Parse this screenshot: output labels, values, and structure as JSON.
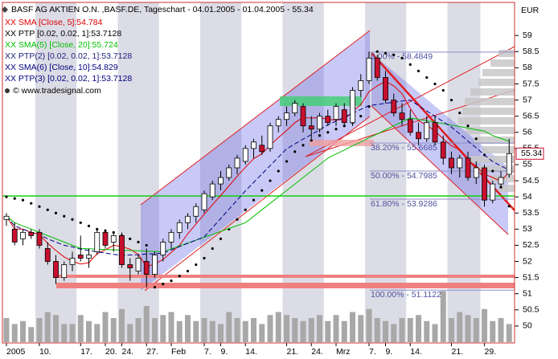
{
  "chart_data": {
    "type": "candlestick",
    "title": "BASF AG AKTIEN O.N. ,BASF.DE, Tageschart - 04.01.2005 - 01.04.2005 - 55.34",
    "y_axis_label": "EUR",
    "copyright": "© www.tradesignal.com",
    "categories": [
      "2005",
      null,
      null,
      null,
      "10.",
      null,
      null,
      null,
      null,
      "17.",
      null,
      null,
      "20.",
      null,
      "24.",
      null,
      null,
      "27.",
      null,
      null,
      "Feb",
      null,
      null,
      null,
      "7.",
      null,
      "9.",
      null,
      null,
      "14.",
      null,
      null,
      null,
      null,
      "21.",
      null,
      null,
      "24.",
      null,
      null,
      "Mrz",
      null,
      null,
      null,
      "7.",
      null,
      "9.",
      null,
      null,
      "14.",
      null,
      null,
      null,
      null,
      "21.",
      null,
      null,
      null,
      "29.",
      null,
      null,
      null
    ],
    "open": [
      53.3,
      53.0,
      52.7,
      52.9,
      52.9,
      52.4,
      52.0,
      51.5,
      51.9,
      52.2,
      52.1,
      52.3,
      52.9,
      52.6,
      52.8,
      51.9,
      51.7,
      52.0,
      51.6,
      52.2,
      52.6,
      52.9,
      53.2,
      53.4,
      53.6,
      54.0,
      54.4,
      54.6,
      54.9,
      55.1,
      55.5,
      55.6,
      55.5,
      56.2,
      56.4,
      56.6,
      56.8,
      56.2,
      56.1,
      56.5,
      56.4,
      56.7,
      56.3,
      57.3,
      57.6,
      58.3,
      57.7,
      57.0,
      56.6,
      56.4,
      56.0,
      55.8,
      56.3,
      55.7,
      55.2,
      54.9,
      55.2,
      54.6,
      54.9,
      53.9,
      54.4,
      54.7
    ],
    "high": [
      53.5,
      53.2,
      53.0,
      53.0,
      53.0,
      52.6,
      52.2,
      52.0,
      52.3,
      52.8,
      52.4,
      53.0,
      53.0,
      52.9,
      52.9,
      52.1,
      52.2,
      52.4,
      52.3,
      52.7,
      53.0,
      53.3,
      53.5,
      53.8,
      54.2,
      54.5,
      54.8,
      55.0,
      55.3,
      55.6,
      55.8,
      55.9,
      56.3,
      56.5,
      56.8,
      57.0,
      56.9,
      56.5,
      56.6,
      56.7,
      56.9,
      56.9,
      57.4,
      57.8,
      58.5,
      58.4,
      57.9,
      57.2,
      56.9,
      56.7,
      56.3,
      56.5,
      56.5,
      55.9,
      55.4,
      55.3,
      55.4,
      55.1,
      55.0,
      54.5,
      54.8,
      55.8
    ],
    "low": [
      53.1,
      52.5,
      52.5,
      52.7,
      52.4,
      51.9,
      51.3,
      51.4,
      51.7,
      52.0,
      51.8,
      52.2,
      52.4,
      52.3,
      51.8,
      51.4,
      51.6,
      51.2,
      51.5,
      52.0,
      52.4,
      52.7,
      53.0,
      53.2,
      53.5,
      53.9,
      54.2,
      54.5,
      54.7,
      55.0,
      55.2,
      55.3,
      55.4,
      56.0,
      56.2,
      56.5,
      56.0,
      55.8,
      56.0,
      56.2,
      56.2,
      56.2,
      56.2,
      57.1,
      57.5,
      57.6,
      56.9,
      56.5,
      56.2,
      55.9,
      55.6,
      55.7,
      55.6,
      55.0,
      54.7,
      54.6,
      54.5,
      54.4,
      53.7,
      53.8,
      54.3,
      54.6
    ],
    "close": [
      53.4,
      52.6,
      52.9,
      52.8,
      52.5,
      52.0,
      51.5,
      51.9,
      52.1,
      52.1,
      52.2,
      52.9,
      52.5,
      52.8,
      51.9,
      51.8,
      52.1,
      51.6,
      52.2,
      52.6,
      52.9,
      53.2,
      53.4,
      53.7,
      54.1,
      54.4,
      54.6,
      54.9,
      55.2,
      55.5,
      55.7,
      55.4,
      56.2,
      56.4,
      56.6,
      56.9,
      56.2,
      56.1,
      56.5,
      56.3,
      56.8,
      56.3,
      57.3,
      57.6,
      58.3,
      57.7,
      57.0,
      56.6,
      56.4,
      56.0,
      55.8,
      56.3,
      55.7,
      55.2,
      54.9,
      55.2,
      54.6,
      54.9,
      53.9,
      54.4,
      54.6,
      55.34
    ],
    "volume": [
      4,
      3,
      3.5,
      2.5,
      4,
      5,
      4.5,
      3,
      3,
      4.5,
      3.5,
      3,
      5,
      4,
      5.5,
      3,
      4,
      6,
      4,
      4.5,
      5,
      3.5,
      4.5,
      3.5,
      4,
      3.5,
      3,
      5,
      4,
      3.5,
      4,
      3,
      4.5,
      5,
      4.5,
      4,
      3.5,
      4,
      4.5,
      3.5,
      4.5,
      3.5,
      5,
      4.5,
      5.5,
      4,
      3.5,
      3,
      4,
      4,
      4.5,
      3.5,
      3,
      8.5,
      4,
      5,
      4.5,
      4,
      5.5,
      3.5,
      4,
      3
    ],
    "series": [
      {
        "name": "XX SMA [Close, 5]:54.784",
        "color": "#e00000",
        "style": "line",
        "values": [
          53.4,
          53.0,
          53.0,
          52.9,
          52.84,
          52.56,
          52.34,
          52.14,
          52.0,
          51.92,
          51.96,
          52.24,
          52.36,
          52.5,
          52.46,
          52.38,
          52.22,
          51.84,
          51.92,
          52.06,
          52.28,
          52.5,
          52.86,
          53.16,
          53.46,
          53.76,
          54.04,
          54.34,
          54.64,
          54.92,
          55.18,
          55.34,
          55.6,
          55.84,
          56.06,
          56.3,
          56.46,
          56.44,
          56.46,
          56.4,
          56.38,
          56.4,
          56.64,
          56.86,
          57.26,
          57.44,
          57.58,
          57.44,
          57.2,
          56.74,
          56.36,
          56.22,
          56.04,
          55.8,
          55.58,
          55.46,
          55.12,
          54.96,
          54.7,
          54.6,
          54.48,
          54.78
        ]
      },
      {
        "name": "XX PTP [0.02, 0.02, 1]:53.7128",
        "color": "#000000",
        "style": "dots",
        "values": [
          54.0,
          53.95,
          53.9,
          53.8,
          53.7,
          53.6,
          53.5,
          53.4,
          53.3,
          53.2,
          53.1,
          53.0,
          52.95,
          52.9,
          52.8,
          52.7,
          52.6,
          52.5,
          51.2,
          51.3,
          51.4,
          51.55,
          51.7,
          51.9,
          52.1,
          52.4,
          52.7,
          53.0,
          53.3,
          53.6,
          53.9,
          54.2,
          54.5,
          54.8,
          55.1,
          55.4,
          55.6,
          55.75,
          55.9,
          56.0,
          56.1,
          56.2,
          56.3,
          56.5,
          56.8,
          58.5,
          58.45,
          58.4,
          58.3,
          58.1,
          57.9,
          57.7,
          57.5,
          57.3,
          57.0,
          56.6,
          56.2,
          55.8,
          55.3,
          54.8,
          54.3,
          53.71
        ]
      },
      {
        "name": "XX SMA(5) [Close, 20]:55.724",
        "color": "#00c000",
        "style": "line",
        "values": [
          53.4,
          53.2,
          53.1,
          53.0,
          52.9,
          52.8,
          52.7,
          52.6,
          52.5,
          52.4,
          52.39,
          52.38,
          52.37,
          52.36,
          52.35,
          52.34,
          52.33,
          52.32,
          52.31,
          52.3,
          52.39,
          52.48,
          52.57,
          52.66,
          52.75,
          52.84,
          52.93,
          53.02,
          53.11,
          53.2,
          53.4,
          53.6,
          53.8,
          54.0,
          54.2,
          54.4,
          54.6,
          54.8,
          55.0,
          55.2,
          55.33,
          55.45,
          55.58,
          55.7,
          55.83,
          55.95,
          56.08,
          56.2,
          56.33,
          56.45,
          56.4,
          56.36,
          56.31,
          56.27,
          56.22,
          56.18,
          56.13,
          56.08,
          56.04,
          55.9,
          55.81,
          55.72
        ]
      },
      {
        "name": "XX SMA(6) [Close, 10]:54.829",
        "color": "#000080",
        "style": "dashed",
        "values": [
          53.4,
          53.1,
          53.0,
          52.9,
          52.84,
          52.7,
          52.6,
          52.5,
          52.45,
          52.38,
          52.34,
          52.3,
          52.26,
          52.22,
          52.19,
          52.2,
          52.21,
          52.23,
          52.24,
          52.26,
          52.36,
          52.46,
          52.56,
          52.66,
          52.76,
          53.05,
          53.33,
          53.62,
          53.9,
          54.19,
          54.45,
          54.71,
          54.97,
          55.23,
          55.49,
          55.64,
          55.79,
          55.93,
          56.08,
          56.23,
          56.35,
          56.47,
          56.59,
          56.71,
          56.83,
          56.86,
          56.9,
          56.93,
          56.97,
          57.0,
          56.83,
          56.66,
          56.5,
          56.33,
          56.16,
          55.95,
          55.73,
          55.52,
          55.3,
          55.09,
          54.96,
          54.83
        ]
      }
    ],
    "legend": [
      {
        "text": "XX SMA [Close, 5]:54.784",
        "color": "#e00000"
      },
      {
        "text": "XX PTP [0.02, 0.02, 1]:53.7128",
        "color": "#000000"
      },
      {
        "text": "XX SMA(5) [Close, 20]:55.724",
        "color": "#00c000"
      },
      {
        "text": "XX PTP(2) [0.02, 0.02, 1]:53.7128",
        "color": "#202080"
      },
      {
        "text": "XX SMA(6) [Close, 10]:54.829",
        "color": "#000080"
      },
      {
        "text": "XX PTP(3) [0.02, 0.02, 1]:53.7128",
        "color": "#000080"
      }
    ],
    "fib_levels": [
      {
        "value": 58.4849,
        "label": "0.00% - 58.4849"
      },
      {
        "value": 55.6685,
        "label": "38.20% - 55.6685"
      },
      {
        "value": 54.7985,
        "label": "50.00% - 54.7985"
      },
      {
        "value": 53.9286,
        "label": "61.80% - 53.9286"
      },
      {
        "value": 51.1122,
        "label": "100.00% - 51.1122"
      }
    ],
    "ylim": [
      49.5,
      60
    ],
    "yticks": [
      50,
      50.5,
      51,
      51.5,
      52,
      52.5,
      53,
      53.5,
      54,
      54.5,
      55,
      55.5,
      56,
      56.5,
      57,
      57.5,
      58,
      58.5,
      59
    ],
    "up_color": "#ffffff",
    "down_color": "#c8102e",
    "volume_color": "#a8a8a8"
  }
}
